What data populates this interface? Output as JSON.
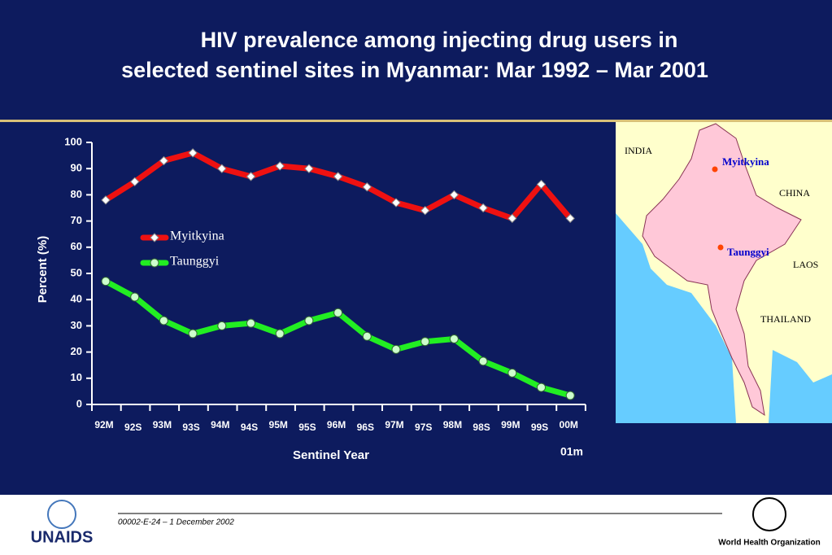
{
  "chart_data": {
    "type": "line",
    "title": [
      "HIV prevalence among injecting drug users in",
      "selected sentinel sites in Myanmar: Mar 1992 – Mar 2001"
    ],
    "categories": [
      "92M",
      "92S",
      "93M",
      "93S",
      "94M",
      "94S",
      "95M",
      "95S",
      "96M",
      "96S",
      "97M",
      "97S",
      "98M",
      "98S",
      "99M",
      "99S",
      "00M"
    ],
    "annotation": "01m",
    "x_label": "Sentinel Year",
    "y_label": "Percent (%)",
    "ylim": [
      0,
      100
    ],
    "yticks": [
      0,
      10,
      20,
      30,
      40,
      50,
      60,
      70,
      80,
      90,
      100
    ],
    "series": [
      {
        "name": "Myitkyina",
        "color": "#ee1111",
        "marker": "diamond",
        "values": [
          78,
          85,
          93,
          96,
          90,
          87,
          91,
          90,
          87,
          83,
          77,
          74,
          80,
          75,
          71,
          84,
          71
        ]
      },
      {
        "name": "Taunggyi",
        "color": "#22ee22",
        "marker": "circle",
        "values": [
          47,
          41,
          32,
          27,
          30,
          31,
          27,
          32,
          35,
          26,
          21,
          24,
          25,
          16.5,
          12,
          6.5,
          3.4
        ]
      }
    ]
  },
  "map": {
    "labels": [
      "INDIA",
      "CHINA",
      "LAOS",
      "THAILAND"
    ],
    "sites": [
      "Myitkyina",
      "Taunggyi"
    ]
  },
  "footer": {
    "code": "00002-E-24 – 1 December 2002",
    "left_logo": "UNAIDS",
    "right_logo": "World Health Organization"
  }
}
